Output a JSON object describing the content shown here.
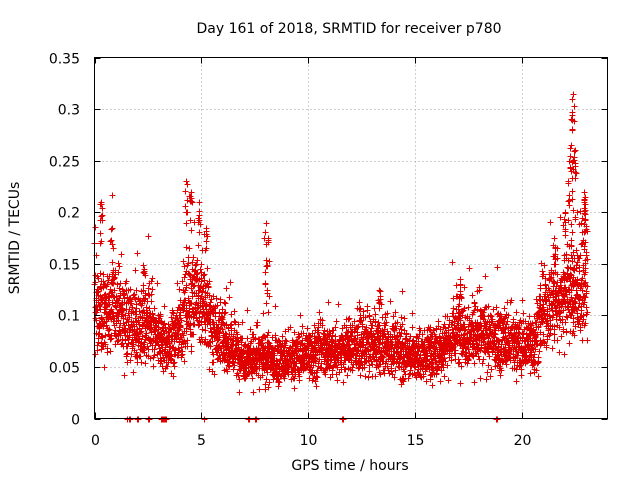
{
  "chart_data": {
    "type": "scatter",
    "title": "Day 161 of 2018, SRMTID for receiver p780",
    "xlabel": "GPS time / hours",
    "ylabel": "SRMTID / TECUs",
    "xlim": [
      0,
      24
    ],
    "ylim": [
      0,
      0.35
    ],
    "xticks": [
      0,
      5,
      10,
      15,
      20
    ],
    "xtick_labels": [
      "0",
      "5",
      "10",
      "15",
      "20"
    ],
    "yticks": [
      0,
      0.05,
      0.1,
      0.15,
      0.2,
      0.25,
      0.3,
      0.35
    ],
    "ytick_labels": [
      "0",
      "0.05",
      "0.1",
      "0.15",
      "0.2",
      "0.25",
      "0.3",
      "0.35"
    ],
    "grid": true,
    "marker": "+",
    "color": "#e00000",
    "series": [
      {
        "name": "SRMTID",
        "profile_hours": [
          0,
          0.5,
          1,
          1.5,
          2,
          2.5,
          3,
          3.5,
          4,
          4.5,
          5,
          5.5,
          6,
          7,
          8,
          9,
          10,
          11,
          12,
          13,
          14,
          15,
          16,
          17,
          18,
          19,
          20,
          20.5,
          21,
          21.5,
          22,
          22.5,
          23
        ],
        "profile_median": [
          0.11,
          0.1,
          0.11,
          0.095,
          0.085,
          0.09,
          0.075,
          0.07,
          0.09,
          0.12,
          0.11,
          0.09,
          0.075,
          0.06,
          0.058,
          0.055,
          0.065,
          0.065,
          0.07,
          0.07,
          0.068,
          0.06,
          0.065,
          0.085,
          0.08,
          0.075,
          0.07,
          0.075,
          0.1,
          0.115,
          0.12,
          0.12,
          0.13
        ],
        "peaks": [
          {
            "x": 0.3,
            "y": 0.21
          },
          {
            "x": 0.8,
            "y": 0.185
          },
          {
            "x": 2.3,
            "y": 0.145
          },
          {
            "x": 4.3,
            "y": 0.23
          },
          {
            "x": 4.5,
            "y": 0.22
          },
          {
            "x": 4.9,
            "y": 0.21
          },
          {
            "x": 5.2,
            "y": 0.185
          },
          {
            "x": 8.0,
            "y": 0.19
          },
          {
            "x": 8.1,
            "y": 0.175
          },
          {
            "x": 13.3,
            "y": 0.125
          },
          {
            "x": 17.1,
            "y": 0.135
          },
          {
            "x": 21.5,
            "y": 0.175
          },
          {
            "x": 22.0,
            "y": 0.2
          },
          {
            "x": 22.2,
            "y": 0.25
          },
          {
            "x": 22.3,
            "y": 0.29
          },
          {
            "x": 22.35,
            "y": 0.31
          },
          {
            "x": 22.4,
            "y": 0.315
          },
          {
            "x": 22.5,
            "y": 0.26
          },
          {
            "x": 22.9,
            "y": 0.22
          },
          {
            "x": 22.95,
            "y": 0.215
          }
        ],
        "zeros_hours": [
          1.5,
          1.6,
          2.0,
          2.5,
          3.1,
          3.2,
          3.3,
          5.1,
          7.2,
          7.5,
          11.6,
          18.8
        ]
      }
    ]
  }
}
